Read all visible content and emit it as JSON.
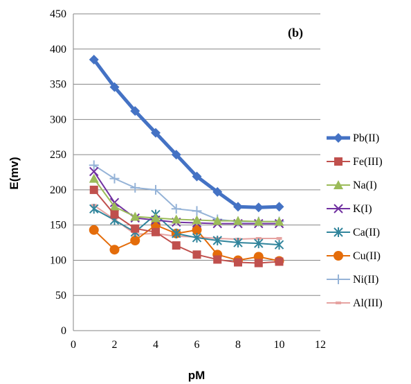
{
  "chart_data": {
    "type": "line",
    "title": "",
    "annotation": "(b)",
    "xlabel": "pM",
    "ylabel": "E(mv)",
    "xlim": [
      0,
      12
    ],
    "ylim": [
      0,
      450
    ],
    "xticks": [
      0,
      2,
      4,
      6,
      8,
      10,
      12
    ],
    "yticks": [
      0,
      50,
      100,
      150,
      200,
      250,
      300,
      350,
      400,
      450
    ],
    "grid": "horizontal",
    "legend_position": "right",
    "x": [
      1,
      2,
      3,
      4,
      5,
      6,
      7,
      8,
      9,
      10
    ],
    "series": [
      {
        "name": "Pb(II)",
        "color": "#4472C4",
        "marker": "diamond",
        "width": 5,
        "values": [
          385,
          346,
          312,
          281,
          250,
          219,
          197,
          176,
          175,
          176
        ]
      },
      {
        "name": "Fe(III)",
        "color": "#C0504D",
        "marker": "square",
        "width": 2,
        "values": [
          200,
          165,
          145,
          140,
          121,
          108,
          101,
          97,
          96,
          98
        ]
      },
      {
        "name": "Na(I)",
        "color": "#9BBB59",
        "marker": "triangle",
        "width": 2,
        "values": [
          216,
          176,
          162,
          160,
          158,
          157,
          156,
          156,
          155,
          155
        ]
      },
      {
        "name": "K(I)",
        "color": "#7030A0",
        "marker": "x",
        "width": 2,
        "values": [
          226,
          182,
          160,
          157,
          154,
          153,
          152,
          152,
          152,
          152
        ]
      },
      {
        "name": "Ca(II)",
        "color": "#31859C",
        "marker": "asterisk",
        "width": 2,
        "values": [
          173,
          157,
          140,
          165,
          138,
          132,
          128,
          125,
          124,
          122
        ]
      },
      {
        "name": "Cu(II)",
        "color": "#E46C0A",
        "marker": "circle",
        "width": 2,
        "values": [
          143,
          115,
          128,
          150,
          138,
          143,
          108,
          100,
          105,
          99
        ]
      },
      {
        "name": "Ni(II)",
        "color": "#95B3D7",
        "marker": "plus",
        "width": 2,
        "values": [
          235,
          216,
          203,
          200,
          173,
          170,
          158,
          155,
          155,
          155
        ]
      },
      {
        "name": "Al(III)",
        "color": "#E6A3A1",
        "marker": "dash",
        "width": 2,
        "values": [
          178,
          158,
          137,
          138,
          134,
          133,
          131,
          130,
          131,
          131
        ]
      }
    ]
  }
}
